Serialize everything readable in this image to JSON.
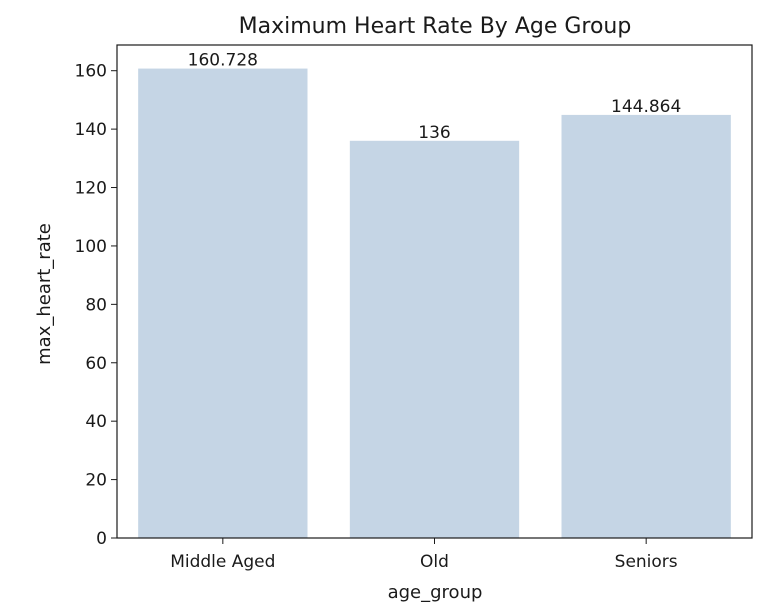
{
  "chart_data": {
    "type": "bar",
    "title": "Maximum Heart Rate By Age Group",
    "xlabel": "age_group",
    "ylabel": "max_heart_rate",
    "categories": [
      "Middle Aged",
      "Old",
      "Seniors"
    ],
    "values": [
      160.728,
      136,
      144.864
    ],
    "value_labels": [
      "160.728",
      "136",
      "144.864"
    ],
    "ylim": [
      0,
      168.8
    ],
    "yticks": [
      0,
      20,
      40,
      60,
      80,
      100,
      120,
      140,
      160
    ],
    "bar_color": "#c5d5e5",
    "grid": false,
    "legend": false
  }
}
